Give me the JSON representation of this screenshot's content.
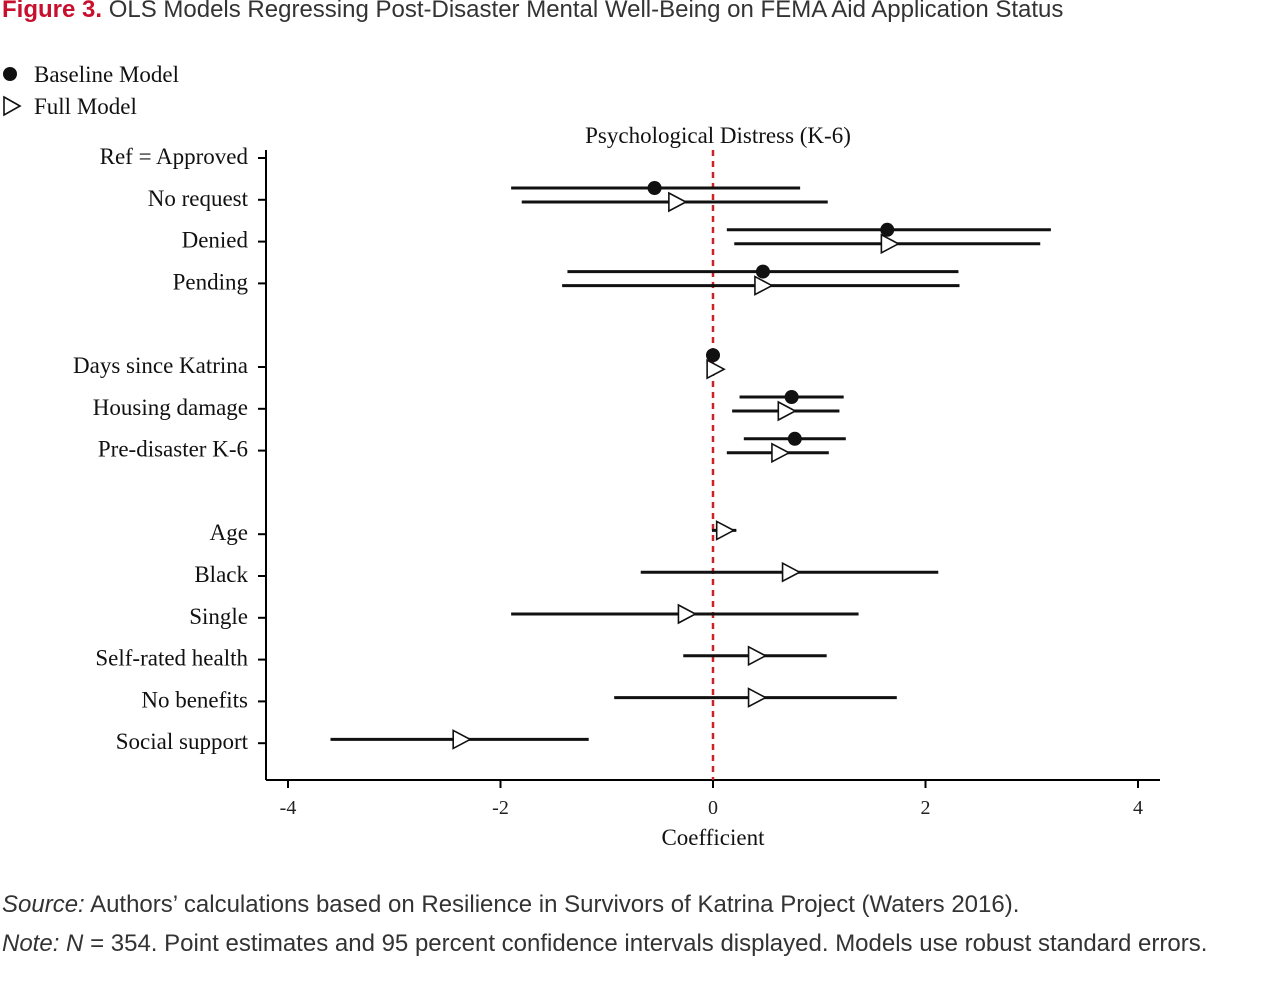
{
  "figure": {
    "label": "Figure 3.",
    "title": "OLS Models Regressing Post-Disaster Mental Well-Being on FEMA Aid Application Status"
  },
  "notes": {
    "source_label": "Source:",
    "source_text": "Authors’ calculations based on Resilience in Survivors of Katrina Project (Waters 2016).",
    "note_label": "Note:",
    "note_n": "N",
    "note_text": "= 354. Point estimates and 95 percent confidence intervals displayed. Models use robust standard errors."
  },
  "colors": {
    "reference_line": "#cc2127",
    "marks": "#111111",
    "title_accent": "#c8102e"
  },
  "chart_data": {
    "type": "scatter",
    "subtype": "coefficient-plot",
    "title": "Psychological Distress (K-6)",
    "xlabel": "Coefficient",
    "xlim": [
      -4.2,
      4.2
    ],
    "xticks": [
      -4,
      -2,
      0,
      2,
      4
    ],
    "xtick_labels": [
      "-4",
      "-2",
      "0",
      "2",
      "4"
    ],
    "reference_line": 0,
    "legend_position": "top-left",
    "series": [
      {
        "name": "Baseline Model",
        "marker": "filled-circle"
      },
      {
        "name": "Full Model",
        "marker": "open-triangle-right"
      }
    ],
    "rows": [
      {
        "label": "Ref = Approved",
        "baseline": null,
        "full": null
      },
      {
        "label": "No request",
        "baseline": {
          "est": -0.55,
          "lo": -1.9,
          "hi": 0.82
        },
        "full": {
          "est": -0.34,
          "lo": -1.8,
          "hi": 1.08
        }
      },
      {
        "label": "Denied",
        "baseline": {
          "est": 1.64,
          "lo": 0.13,
          "hi": 3.18
        },
        "full": {
          "est": 1.66,
          "lo": 0.2,
          "hi": 3.08
        }
      },
      {
        "label": "Pending",
        "baseline": {
          "est": 0.47,
          "lo": -1.37,
          "hi": 2.31
        },
        "full": {
          "est": 0.47,
          "lo": -1.42,
          "hi": 2.32
        }
      },
      {
        "label": "",
        "baseline": null,
        "full": null
      },
      {
        "label": "Days since Katrina",
        "baseline": {
          "est": 0.0,
          "lo": -0.02,
          "hi": 0.02
        },
        "full": {
          "est": 0.02,
          "lo": -0.01,
          "hi": 0.05
        }
      },
      {
        "label": "Housing damage",
        "baseline": {
          "est": 0.74,
          "lo": 0.25,
          "hi": 1.23
        },
        "full": {
          "est": 0.69,
          "lo": 0.18,
          "hi": 1.19
        }
      },
      {
        "label": "Pre-disaster K-6",
        "baseline": {
          "est": 0.77,
          "lo": 0.29,
          "hi": 1.25
        },
        "full": {
          "est": 0.63,
          "lo": 0.13,
          "hi": 1.09
        }
      },
      {
        "label": "",
        "baseline": null,
        "full": null
      },
      {
        "label": "Age",
        "baseline": null,
        "full": {
          "est": 0.11,
          "lo": -0.01,
          "hi": 0.22
        }
      },
      {
        "label": "Black",
        "baseline": null,
        "full": {
          "est": 0.73,
          "lo": -0.68,
          "hi": 2.12
        }
      },
      {
        "label": "Single",
        "baseline": null,
        "full": {
          "est": -0.25,
          "lo": -1.9,
          "hi": 1.37
        }
      },
      {
        "label": "Self-rated health",
        "baseline": null,
        "full": {
          "est": 0.41,
          "lo": -0.28,
          "hi": 1.07
        }
      },
      {
        "label": "No benefits",
        "baseline": null,
        "full": {
          "est": 0.41,
          "lo": -0.93,
          "hi": 1.73
        }
      },
      {
        "label": "Social support",
        "baseline": null,
        "full": {
          "est": -2.37,
          "lo": -3.6,
          "hi": -1.17
        }
      }
    ]
  }
}
